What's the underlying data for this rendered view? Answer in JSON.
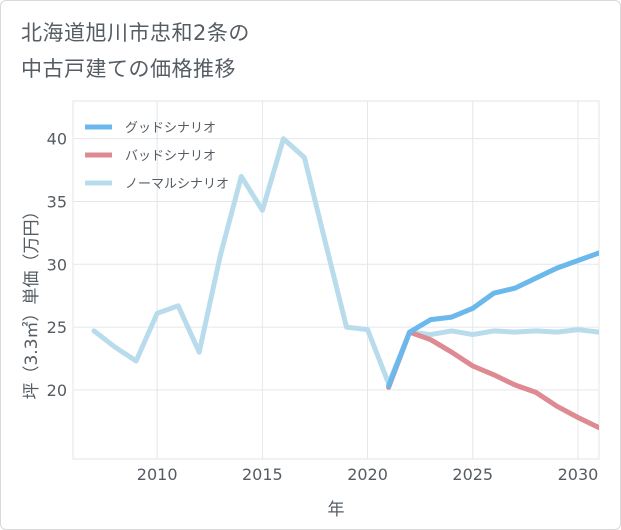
{
  "title_lines": [
    "北海道旭川市忠和2条の",
    "中古戸建ての価格推移"
  ],
  "chart_data": {
    "type": "line",
    "xlabel": "年",
    "ylabel": "坪（3.3㎡）単価（万円）",
    "xlim": [
      2006,
      2031
    ],
    "ylim": [
      14.5,
      43
    ],
    "x_ticks": [
      2010,
      2015,
      2020,
      2025,
      2030
    ],
    "y_ticks": [
      20,
      25,
      30,
      35,
      40
    ],
    "grid": true,
    "legend_position": "top-left",
    "series": [
      {
        "name": "グッドシナリオ",
        "color": "#6bb8ec",
        "x": [
          2021,
          2022,
          2023,
          2024,
          2025,
          2026,
          2027,
          2028,
          2029,
          2030,
          2031
        ],
        "y": [
          20.3,
          24.6,
          25.6,
          25.8,
          26.5,
          27.7,
          28.1,
          28.9,
          29.7,
          30.3,
          30.9
        ]
      },
      {
        "name": "バッドシナリオ",
        "color": "#de8a92",
        "x": [
          2021,
          2022,
          2023,
          2024,
          2025,
          2026,
          2027,
          2028,
          2029,
          2030,
          2031
        ],
        "y": [
          20.2,
          24.6,
          24.0,
          23.0,
          21.9,
          21.2,
          20.4,
          19.8,
          18.7,
          17.8,
          17.0
        ]
      },
      {
        "name": "ノーマルシナリオ",
        "color": "#b9dcec",
        "x": [
          2007,
          2008,
          2009,
          2010,
          2011,
          2012,
          2013,
          2014,
          2015,
          2016,
          2017,
          2018,
          2019,
          2020,
          2021,
          2022,
          2023,
          2024,
          2025,
          2026,
          2027,
          2028,
          2029,
          2030,
          2031
        ],
        "y": [
          24.7,
          23.4,
          22.3,
          26.1,
          26.7,
          23.0,
          30.7,
          37.0,
          34.3,
          40.0,
          38.5,
          31.7,
          25.0,
          24.8,
          20.5,
          24.6,
          24.4,
          24.7,
          24.4,
          24.7,
          24.6,
          24.7,
          24.6,
          24.8,
          24.6
        ]
      }
    ]
  }
}
